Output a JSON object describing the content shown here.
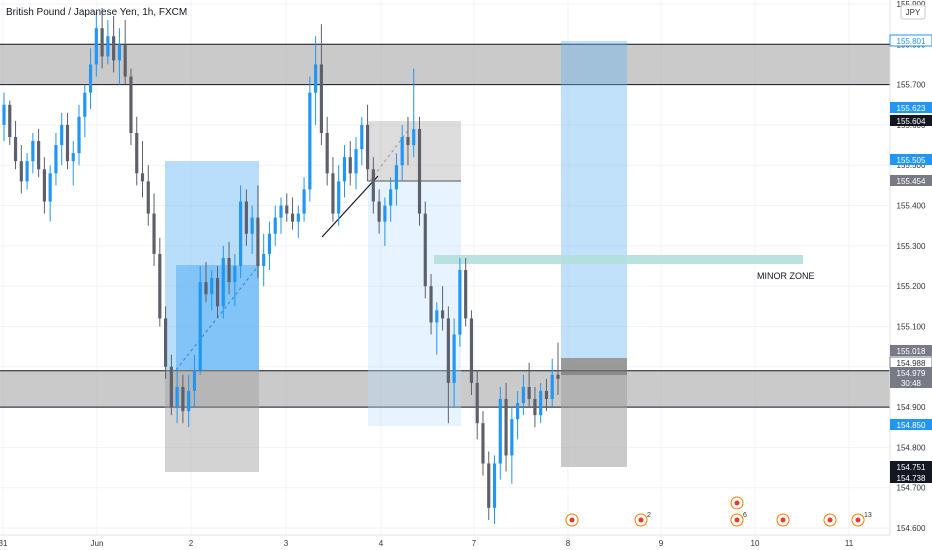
{
  "symbol_title": "British Pound / Japanese Yen, 1h, FXCM",
  "currency": "JPY",
  "colors": {
    "up": "#2196f3",
    "down": "#5d606b",
    "zone_gray": "#9e9e9e",
    "long_blue": "#90caf9",
    "teal": "#b2dfdb",
    "text": "#131722",
    "axis_text": "#333333"
  },
  "chart_data": {
    "type": "candlestick",
    "title": "British Pound / Japanese Yen, 1h, FXCM",
    "y_axis": {
      "min": 154.6,
      "max": 155.9,
      "ticks": [
        "154.600",
        "154.700",
        "154.800",
        "154.900",
        "155.000",
        "155.100",
        "155.200",
        "155.300",
        "155.400",
        "155.500",
        "155.600",
        "155.700",
        "155.800",
        "155.900"
      ]
    },
    "x_axis": {
      "ticks": [
        "31",
        "Jun",
        "2",
        "3",
        "4",
        "7",
        "8",
        "9",
        "10",
        "11"
      ]
    },
    "price_labels": [
      {
        "value": "155.801",
        "style": "blue-outline"
      },
      {
        "value": "155.623",
        "style": "blue"
      },
      {
        "value": "155.604",
        "style": "dark"
      },
      {
        "value": "155.505",
        "style": "blue"
      },
      {
        "value": "155.454",
        "style": "gray"
      },
      {
        "value": "155.018",
        "style": "gray"
      },
      {
        "value": "154.988",
        "style": "gray-outline"
      },
      {
        "value": "154.979",
        "style": "gray"
      },
      {
        "value": "30:48",
        "style": "gray"
      },
      {
        "value": "154.850",
        "style": "blue"
      },
      {
        "value": "154.751",
        "style": "dark"
      },
      {
        "value": "154.738",
        "style": "dark"
      }
    ],
    "zones": [
      {
        "name": "upper-resistance-zone",
        "y0": 155.7,
        "y1": 155.8
      },
      {
        "name": "lower-support-zone",
        "y0": 154.9,
        "y1": 154.99
      }
    ],
    "annotations": {
      "minor_zone_label": "MINOR ZONE",
      "minor_zone_level": 155.26
    },
    "event_markers": [
      {
        "label": "",
        "x_index": 0
      },
      {
        "label": "2",
        "x_index": 1
      },
      {
        "label": "6",
        "x_index": 2
      },
      {
        "label": "",
        "x_index": 3
      },
      {
        "label": "",
        "x_index": 4
      },
      {
        "label": "13",
        "x_index": 5
      }
    ],
    "candles": [
      [
        155.6,
        155.68,
        155.56,
        155.65
      ],
      [
        155.65,
        155.66,
        155.55,
        155.57
      ],
      [
        155.57,
        155.61,
        155.49,
        155.51
      ],
      [
        155.51,
        155.55,
        155.43,
        155.46
      ],
      [
        155.46,
        155.53,
        155.44,
        155.51
      ],
      [
        155.51,
        155.58,
        155.48,
        155.56
      ],
      [
        155.56,
        155.59,
        155.47,
        155.49
      ],
      [
        155.49,
        155.52,
        155.38,
        155.41
      ],
      [
        155.41,
        155.5,
        155.36,
        155.48
      ],
      [
        155.48,
        155.58,
        155.45,
        155.55
      ],
      [
        155.55,
        155.63,
        155.5,
        155.6
      ],
      [
        155.6,
        155.63,
        155.49,
        155.51
      ],
      [
        155.51,
        155.56,
        155.45,
        155.53
      ],
      [
        155.53,
        155.65,
        155.5,
        155.62
      ],
      [
        155.62,
        155.7,
        155.57,
        155.68
      ],
      [
        155.68,
        155.79,
        155.64,
        155.75
      ],
      [
        155.75,
        155.88,
        155.72,
        155.84
      ],
      [
        155.84,
        155.89,
        155.74,
        155.77
      ],
      [
        155.77,
        155.86,
        155.75,
        155.82
      ],
      [
        155.82,
        155.87,
        155.73,
        155.76
      ],
      [
        155.76,
        155.84,
        155.7,
        155.8
      ],
      [
        155.8,
        155.86,
        155.7,
        155.72
      ],
      [
        155.72,
        155.74,
        155.55,
        155.58
      ],
      [
        155.58,
        155.62,
        155.45,
        155.48
      ],
      [
        155.48,
        155.56,
        155.42,
        155.46
      ],
      [
        155.46,
        155.5,
        155.35,
        155.38
      ],
      [
        155.38,
        155.43,
        155.25,
        155.28
      ],
      [
        155.28,
        155.32,
        155.1,
        155.12
      ],
      [
        155.12,
        155.15,
        154.97,
        155.0
      ],
      [
        155.0,
        155.03,
        154.88,
        154.9
      ],
      [
        154.9,
        154.99,
        154.86,
        154.95
      ],
      [
        154.95,
        154.98,
        154.86,
        154.89
      ],
      [
        154.89,
        154.98,
        154.85,
        154.94
      ],
      [
        154.94,
        155.03,
        154.9,
        154.99
      ],
      [
        154.99,
        155.25,
        154.98,
        155.21
      ],
      [
        155.21,
        155.26,
        155.16,
        155.18
      ],
      [
        155.18,
        155.24,
        155.14,
        155.22
      ],
      [
        155.22,
        155.25,
        155.12,
        155.15
      ],
      [
        155.15,
        155.3,
        155.12,
        155.27
      ],
      [
        155.27,
        155.31,
        155.18,
        155.21
      ],
      [
        155.21,
        155.28,
        155.15,
        155.25
      ],
      [
        155.25,
        155.45,
        155.22,
        155.41
      ],
      [
        155.41,
        155.44,
        155.3,
        155.33
      ],
      [
        155.33,
        155.4,
        155.28,
        155.37
      ],
      [
        155.37,
        155.45,
        155.22,
        155.25
      ],
      [
        155.25,
        155.33,
        155.2,
        155.28
      ],
      [
        155.28,
        155.36,
        155.24,
        155.33
      ],
      [
        155.33,
        155.4,
        155.3,
        155.37
      ],
      [
        155.37,
        155.42,
        155.33,
        155.4
      ],
      [
        155.4,
        155.43,
        155.36,
        155.38
      ],
      [
        155.38,
        155.42,
        155.34,
        155.36
      ],
      [
        155.36,
        155.4,
        155.32,
        155.38
      ],
      [
        155.38,
        155.47,
        155.36,
        155.44
      ],
      [
        155.44,
        155.72,
        155.41,
        155.68
      ],
      [
        155.68,
        155.82,
        155.6,
        155.75
      ],
      [
        155.75,
        155.85,
        155.55,
        155.58
      ],
      [
        155.58,
        155.62,
        155.45,
        155.48
      ],
      [
        155.48,
        155.52,
        155.36,
        155.38
      ],
      [
        155.38,
        155.5,
        155.35,
        155.46
      ],
      [
        155.46,
        155.55,
        155.42,
        155.52
      ],
      [
        155.52,
        155.56,
        155.45,
        155.48
      ],
      [
        155.48,
        155.57,
        155.44,
        155.54
      ],
      [
        155.54,
        155.62,
        155.5,
        155.6
      ],
      [
        155.6,
        155.65,
        155.46,
        155.49
      ],
      [
        155.49,
        155.52,
        155.38,
        155.41
      ],
      [
        155.41,
        155.44,
        155.33,
        155.36
      ],
      [
        155.36,
        155.42,
        155.3,
        155.4
      ],
      [
        155.4,
        155.47,
        155.36,
        155.44
      ],
      [
        155.44,
        155.53,
        155.4,
        155.5
      ],
      [
        155.5,
        155.6,
        155.46,
        155.57
      ],
      [
        155.57,
        155.62,
        155.5,
        155.55
      ],
      [
        155.55,
        155.74,
        155.52,
        155.59
      ],
      [
        155.59,
        155.62,
        155.35,
        155.38
      ],
      [
        155.38,
        155.41,
        155.17,
        155.2
      ],
      [
        155.2,
        155.23,
        155.08,
        155.11
      ],
      [
        155.11,
        155.16,
        155.03,
        155.14
      ],
      [
        155.14,
        155.2,
        155.09,
        155.12
      ],
      [
        155.12,
        155.15,
        154.86,
        154.96
      ],
      [
        154.96,
        155.12,
        154.9,
        155.08
      ],
      [
        155.08,
        155.27,
        155.05,
        155.24
      ],
      [
        155.24,
        155.27,
        155.1,
        155.12
      ],
      [
        155.12,
        155.14,
        154.93,
        154.96
      ],
      [
        154.96,
        154.99,
        154.82,
        154.86
      ],
      [
        154.86,
        154.89,
        154.73,
        154.76
      ],
      [
        154.76,
        154.79,
        154.62,
        154.65
      ],
      [
        154.65,
        154.78,
        154.61,
        154.76
      ],
      [
        154.76,
        154.95,
        154.72,
        154.92
      ],
      [
        154.92,
        154.96,
        154.74,
        154.78
      ],
      [
        154.78,
        154.9,
        154.71,
        154.87
      ],
      [
        154.87,
        154.94,
        154.82,
        154.91
      ],
      [
        154.91,
        154.98,
        154.88,
        154.95
      ],
      [
        154.95,
        155.01,
        154.9,
        154.92
      ],
      [
        154.92,
        154.95,
        154.85,
        154.88
      ],
      [
        154.88,
        154.96,
        154.86,
        154.94
      ],
      [
        154.94,
        154.97,
        154.89,
        154.92
      ],
      [
        154.92,
        155.02,
        154.9,
        154.98
      ],
      [
        154.98,
        155.06,
        154.93,
        154.97
      ]
    ]
  }
}
